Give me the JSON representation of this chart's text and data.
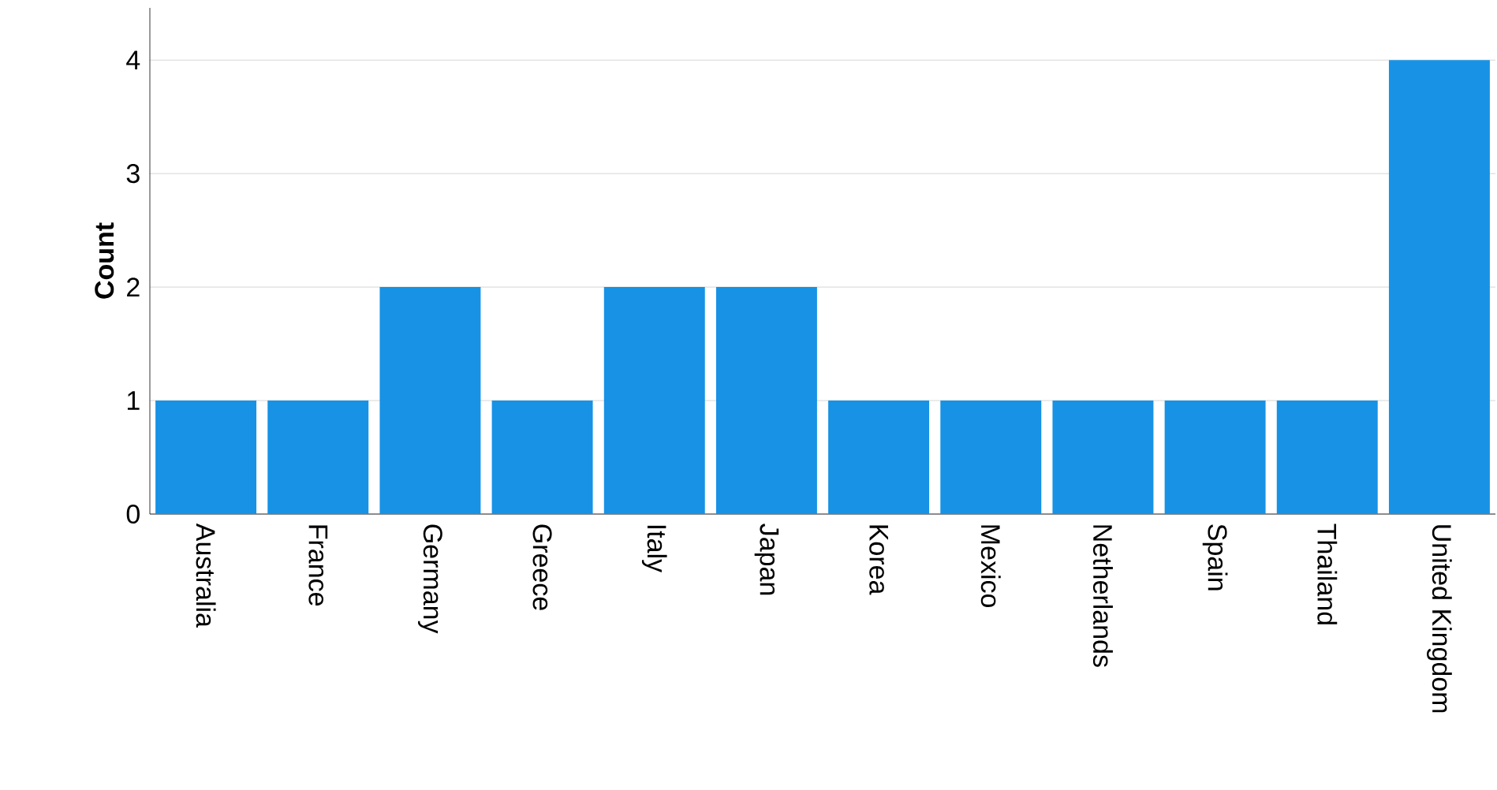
{
  "chart_data": {
    "type": "bar",
    "ylabel": "Count",
    "categories": [
      "Australia",
      "France",
      "Germany",
      "Greece",
      "Italy",
      "Japan",
      "Korea",
      "Mexico",
      "Netherlands",
      "Spain",
      "Thailand",
      "United Kingdom"
    ],
    "values": [
      1,
      1,
      2,
      1,
      2,
      2,
      1,
      1,
      1,
      1,
      1,
      4
    ],
    "color": "#1792e5",
    "ylim": [
      0,
      4.46
    ],
    "yticks": [
      0,
      1,
      2,
      3,
      4
    ],
    "grid": "y"
  }
}
